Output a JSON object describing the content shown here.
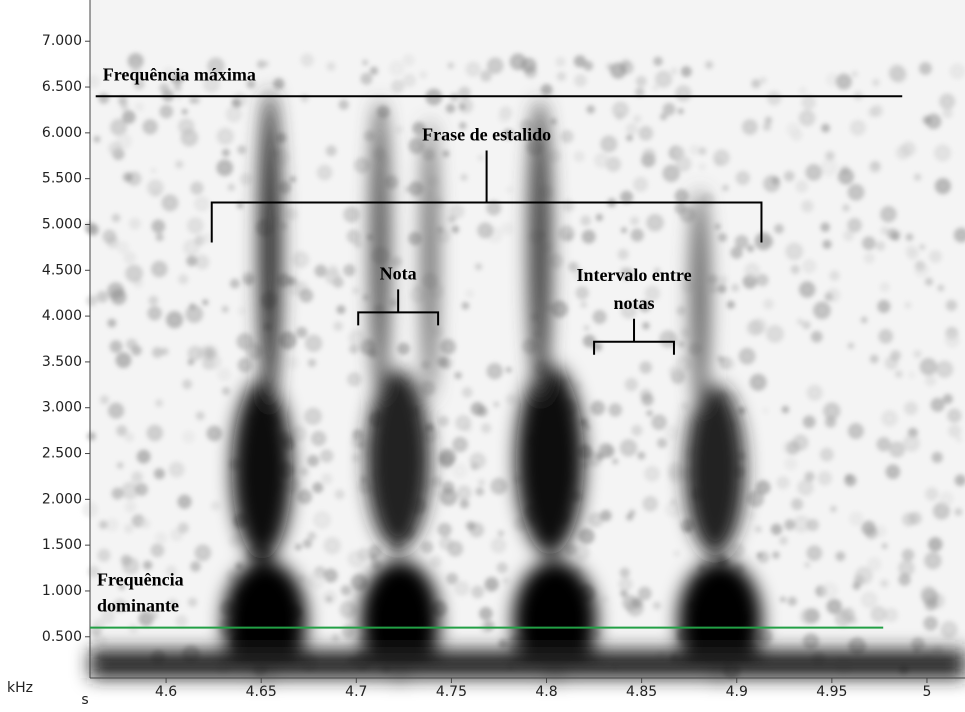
{
  "chart_data": {
    "type": "spectrogram",
    "x_unit": "s",
    "y_unit": "kHz",
    "xlim": [
      4.56,
      5.02
    ],
    "xticks": [
      4.6,
      4.65,
      4.7,
      4.75,
      4.8,
      4.85,
      4.9,
      4.95,
      5
    ],
    "ylim": [
      0.05,
      7.45
    ],
    "yticks": [
      {
        "value": 0.5,
        "label": "0.500"
      },
      {
        "value": 1,
        "label": "1.000"
      },
      {
        "value": 1.5,
        "label": "1.500"
      },
      {
        "value": 2,
        "label": "2.000"
      },
      {
        "value": 2.5,
        "label": "2.500"
      },
      {
        "value": 3,
        "label": "3.000"
      },
      {
        "value": 3.5,
        "label": "3.500"
      },
      {
        "value": 4,
        "label": "4.000"
      },
      {
        "value": 4.5,
        "label": "4.500"
      },
      {
        "value": 5,
        "label": "5.000"
      },
      {
        "value": 5.5,
        "label": "5.500"
      },
      {
        "value": 6,
        "label": "6.000"
      },
      {
        "value": 6.5,
        "label": "6.500"
      },
      {
        "value": 7,
        "label": "7.000"
      }
    ],
    "lines": [
      {
        "text": [
          "Frequência máxima"
        ],
        "y": 6.4,
        "x": [
          4.563,
          4.987
        ],
        "color": "#000000"
      },
      {
        "text": [
          "Frequência",
          "dominante"
        ],
        "y": 0.6,
        "x": [
          4.56,
          4.977
        ],
        "color": "#22a045"
      }
    ],
    "brackets": [
      {
        "text": [
          "Frase de estalido"
        ],
        "x": [
          4.624,
          4.913
        ],
        "y": 5.24
      },
      {
        "text": [
          "Nota"
        ],
        "x": [
          4.701,
          4.743
        ],
        "y": 4.04
      },
      {
        "text": [
          "Intervalo entre",
          "notas"
        ],
        "x": [
          4.825,
          4.867
        ],
        "y": 3.72
      }
    ]
  }
}
